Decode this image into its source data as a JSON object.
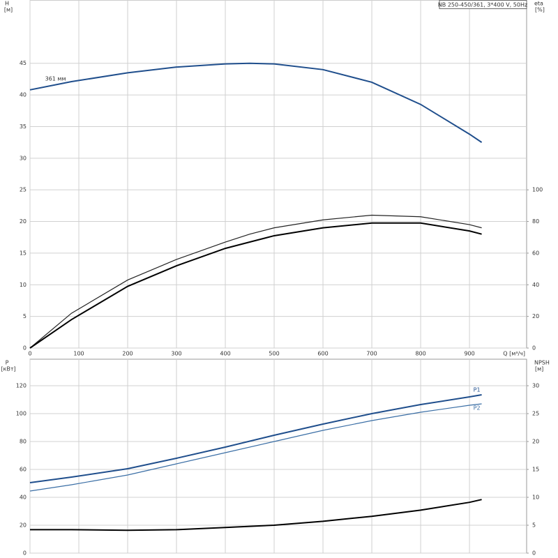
{
  "chart_data": [
    {
      "type": "line",
      "title": "NB 250-450/361, 3*400 V, 50Hz",
      "ylabel": "H",
      "yunit": "[м]",
      "y2label": "eta",
      "y2unit": "[%]",
      "xlabel": "Q [м³/ч]",
      "x": [
        0,
        85,
        200,
        300,
        400,
        450,
        500,
        600,
        700,
        800,
        900,
        925
      ],
      "xlim": [
        0,
        1017
      ],
      "xticks": [
        0,
        100,
        200,
        300,
        400,
        500,
        600,
        700,
        800,
        900
      ],
      "show_xtick_labels": true,
      "ylim": [
        0,
        55
      ],
      "yticks": [
        0,
        5,
        10,
        15,
        20,
        25,
        30,
        35,
        40,
        45
      ],
      "y2lim": [
        0,
        220
      ],
      "y2ticks": [
        0,
        20,
        40,
        60,
        80,
        100
      ],
      "grid": true,
      "series": [
        {
          "name": "361 мм",
          "label_at": "start",
          "color": "#1f4e8c",
          "width": 2,
          "values": [
            40.8,
            42.1,
            43.5,
            44.4,
            44.9,
            45.0,
            44.9,
            44.0,
            42.0,
            38.5,
            33.8,
            32.5
          ]
        },
        {
          "axis": "y2",
          "color": "#222222",
          "width": 1.2,
          "values": [
            0,
            22,
            43,
            56,
            67,
            72,
            76,
            81,
            84,
            83,
            78,
            76
          ]
        },
        {
          "axis": "y2",
          "color": "#000000",
          "width": 2,
          "values": [
            0,
            18,
            39,
            52,
            63,
            67,
            71,
            76,
            79,
            79,
            74,
            72
          ]
        }
      ]
    },
    {
      "type": "line",
      "ylabel": "P",
      "yunit": "[кВт]",
      "y2label": "NPSH",
      "y2unit": "[м]",
      "x": [
        0,
        85,
        200,
        300,
        400,
        500,
        600,
        700,
        800,
        900,
        925
      ],
      "xlim": [
        0,
        1017
      ],
      "xticks": [
        0,
        100,
        200,
        300,
        400,
        500,
        600,
        700,
        800,
        900
      ],
      "show_xtick_labels": false,
      "ylim": [
        0,
        139
      ],
      "yticks": [
        0,
        20,
        40,
        60,
        80,
        100,
        120
      ],
      "y2lim": [
        0,
        34.75
      ],
      "y2ticks": [
        0,
        5,
        10,
        15,
        20,
        25,
        30
      ],
      "grid": true,
      "series": [
        {
          "name": "P1",
          "label_at": "end",
          "color": "#1f4e8c",
          "width": 2,
          "values": [
            50.5,
            54.5,
            60.5,
            68,
            76,
            84.5,
            92.5,
            100,
            106.5,
            112,
            113.5
          ]
        },
        {
          "name": "P2",
          "label_at": "end",
          "color": "#3a6ea5",
          "width": 1.2,
          "values": [
            44.5,
            49,
            56,
            64,
            72,
            80,
            88,
            95,
            101,
            106,
            107
          ]
        },
        {
          "axis": "y2",
          "color": "#000000",
          "width": 2,
          "values": [
            4.2,
            4.2,
            4.1,
            4.2,
            4.6,
            5.0,
            5.7,
            6.6,
            7.7,
            9.1,
            9.6
          ]
        }
      ]
    }
  ]
}
